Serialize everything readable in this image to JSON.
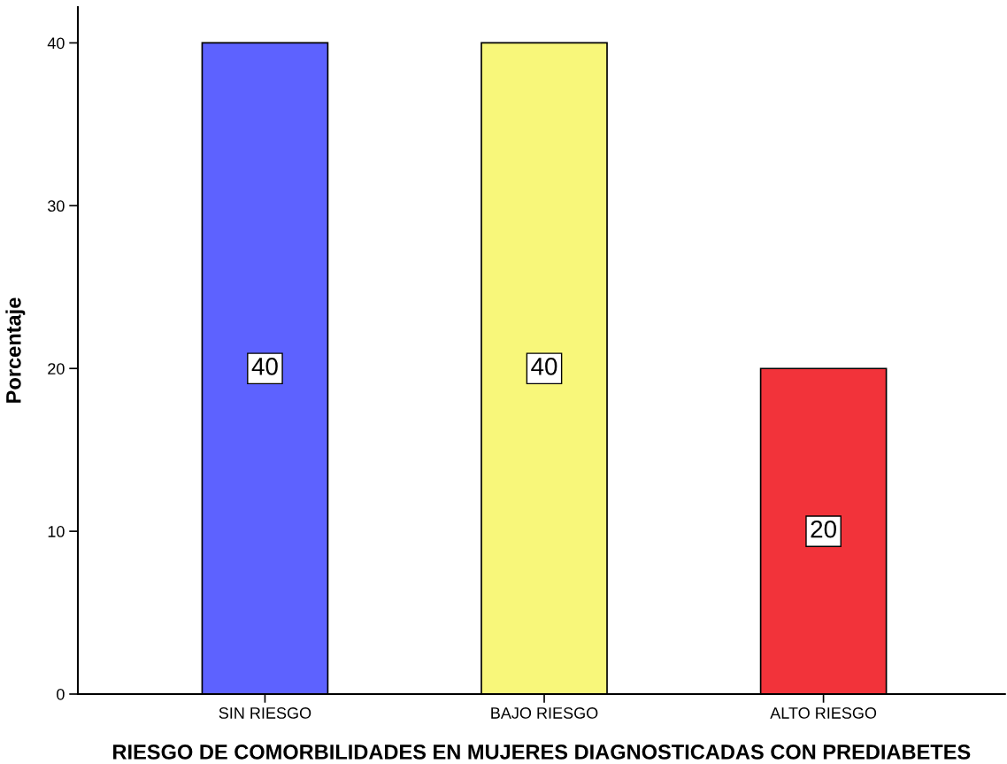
{
  "chart_data": {
    "type": "bar",
    "xlabel": "RIESGO DE COMORBILIDADES EN MUJERES DIAGNOSTICADAS CON PREDIABETES",
    "ylabel": "Porcentaje",
    "categories": [
      "SIN RIESGO",
      "BAJO RIESGO",
      "ALTO RIESGO"
    ],
    "values": [
      40,
      40,
      20
    ],
    "colors": [
      "#5d62ff",
      "#f8f77a",
      "#f2333a"
    ],
    "ylim": [
      0,
      42.2
    ],
    "yticks": [
      0,
      10,
      20,
      30,
      40
    ],
    "grid": false,
    "data_labels": true
  }
}
